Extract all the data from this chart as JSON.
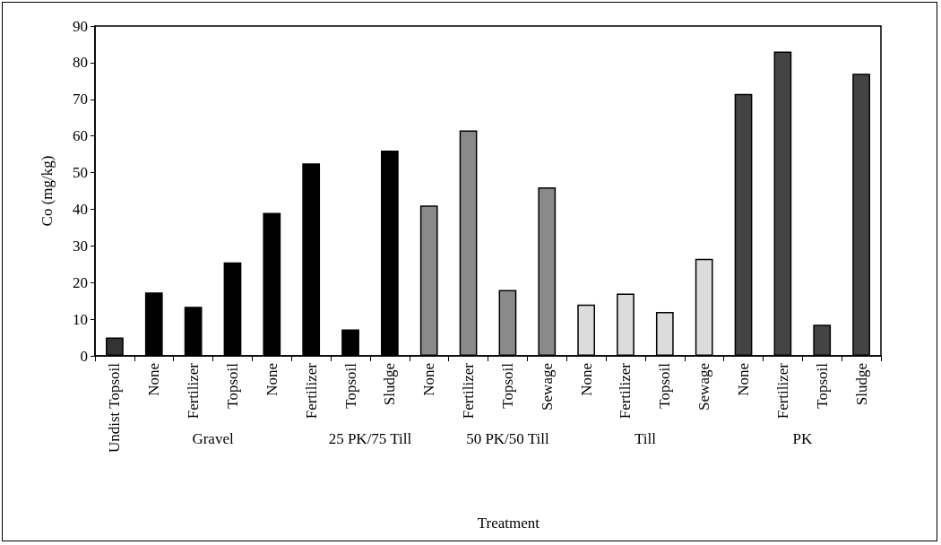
{
  "chart_data": {
    "type": "bar",
    "xlabel": "Treatment",
    "ylabel": "Co (mg/kg)",
    "categories": [
      "Undist Topsoil",
      "None",
      "Fertilizer",
      "Topsoil",
      "None",
      "Fertilizer",
      "Topsoil",
      "Sludge",
      "None",
      "Fertilizer",
      "Topsoil",
      "Sewage",
      "None",
      "Fertilizer",
      "Topsoil",
      "Sewage",
      "None",
      "Fertilizer",
      "Topsoil",
      "Sludge"
    ],
    "values": [
      5,
      17.3,
      13.4,
      25.5,
      39,
      52.5,
      7.2,
      56,
      41,
      61.5,
      18,
      46,
      14,
      17,
      12,
      26.5,
      71.5,
      83,
      8.5,
      77
    ],
    "colors": [
      "#333333",
      "#000000",
      "#000000",
      "#000000",
      "#000000",
      "#000000",
      "#000000",
      "#000000",
      "#8a8a8a",
      "#8a8a8a",
      "#8a8a8a",
      "#8a8a8a",
      "#dcdcdc",
      "#dcdcdc",
      "#dcdcdc",
      "#dcdcdc",
      "#444444",
      "#444444",
      "#444444",
      "#444444"
    ],
    "annotations": [
      "Gravel",
      "25 PK/75 Till",
      "50 PK/50 Till",
      "Till",
      "PK"
    ],
    "ylim": [
      0,
      90
    ],
    "yticks": [
      0,
      10,
      20,
      30,
      40,
      50,
      60,
      70,
      80,
      90
    ],
    "grid": false
  }
}
